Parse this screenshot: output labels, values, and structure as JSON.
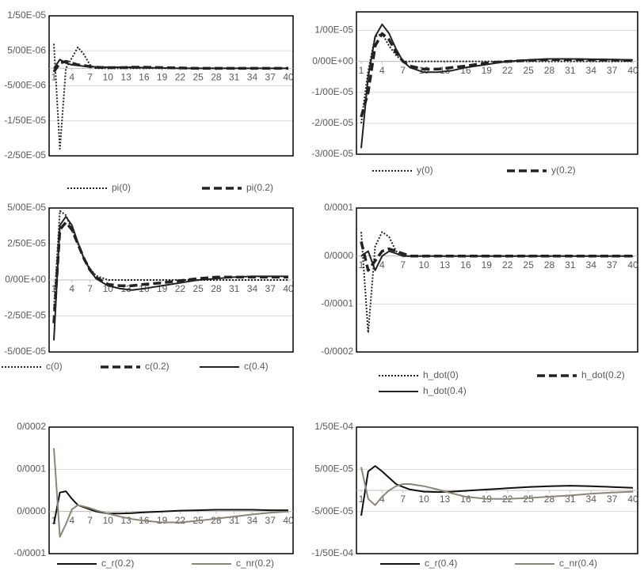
{
  "chart_data": [
    {
      "type": "line",
      "x": [
        1,
        2,
        3,
        4,
        5,
        6,
        7,
        8,
        10,
        12,
        14,
        16,
        19,
        22,
        25,
        28,
        31,
        34,
        37,
        40
      ],
      "xlim": [
        1,
        40
      ],
      "xticks": [
        1,
        4,
        7,
        10,
        13,
        16,
        19,
        22,
        25,
        28,
        31,
        34,
        37,
        40
      ],
      "ylim": [
        -2.5e-05,
        1.5e-05
      ],
      "yticks": [
        {
          "value": 1.5e-05,
          "label": "1/50E-05"
        },
        {
          "value": 5e-06,
          "label": "5/00E-06"
        },
        {
          "value": -5e-06,
          "label": "-5/00E-06"
        },
        {
          "value": -1.5e-05,
          "label": "-1/50E-05"
        },
        {
          "value": -2.5e-05,
          "label": "-2/50E-05"
        }
      ],
      "grid": true,
      "series": [
        {
          "name": "pi(0)",
          "color": "#222222",
          "dash": "dotted",
          "values": [
            7e-06,
            -2.3e-05,
            0,
            3e-06,
            6e-06,
            4e-06,
            1e-06,
            0,
            0,
            0,
            0,
            0,
            0,
            0,
            0,
            0,
            0,
            0,
            0,
            0
          ]
        },
        {
          "name": "pi(0.2)",
          "color": "#222222",
          "dash": "dashed",
          "values": [
            -1e-06,
            1.5e-06,
            2e-06,
            1.5e-06,
            1e-06,
            8e-07,
            5e-07,
            3e-07,
            2e-07,
            2e-07,
            3e-07,
            3e-07,
            2e-07,
            1e-07,
            0,
            0,
            0,
            0,
            0,
            0
          ]
        },
        {
          "color": "#222222",
          "dash": "solid",
          "values": [
            0,
            2.5e-06,
            1.5e-06,
            1e-06,
            8e-07,
            6e-07,
            5e-07,
            4e-07,
            3e-07,
            3e-07,
            3e-07,
            2e-07,
            1e-07,
            0,
            0,
            0,
            0,
            0,
            0,
            0
          ]
        }
      ]
    },
    {
      "type": "line",
      "x": [
        1,
        2,
        3,
        4,
        5,
        6,
        7,
        8,
        10,
        12,
        14,
        16,
        19,
        22,
        25,
        28,
        31,
        34,
        37,
        40
      ],
      "xlim": [
        1,
        40
      ],
      "xticks": [
        1,
        4,
        7,
        10,
        13,
        16,
        19,
        22,
        25,
        28,
        31,
        34,
        37,
        40
      ],
      "ylim": [
        -3e-05,
        1.6e-05
      ],
      "yticks": [
        {
          "value": 1e-05,
          "label": "1/00E-05"
        },
        {
          "value": 0,
          "label": "0/00E+00"
        },
        {
          "value": -1e-05,
          "label": "-1/00E-05"
        },
        {
          "value": -2e-05,
          "label": "-2/00E-05"
        },
        {
          "value": -3e-05,
          "label": "-3/00E-05"
        }
      ],
      "grid": true,
      "series": [
        {
          "name": "y(0)",
          "color": "#222222",
          "dash": "dotted",
          "values": [
            -2e-05,
            -3e-06,
            8e-06,
            9e-06,
            5e-06,
            2e-06,
            0,
            0,
            0,
            0,
            0,
            0,
            0,
            0,
            0,
            0,
            0,
            0,
            0,
            0
          ]
        },
        {
          "name": "y(0.2)",
          "color": "#222222",
          "dash": "dashed",
          "values": [
            -1.8e-05,
            -1e-05,
            5e-06,
            9e-06,
            7e-06,
            3e-06,
            0,
            -1.5e-06,
            -2.5e-06,
            -2.5e-06,
            -2e-06,
            -1.5e-06,
            -5e-07,
            0,
            3e-07,
            6e-07,
            6e-07,
            5e-07,
            4e-07,
            3e-07
          ]
        },
        {
          "color": "#222222",
          "dash": "solid",
          "values": [
            -2.8e-05,
            -5e-06,
            8e-06,
            1.2e-05,
            9e-06,
            4e-06,
            0,
            -2e-06,
            -3.5e-06,
            -3.5e-06,
            -3e-06,
            -2e-06,
            -1e-06,
            0,
            5e-07,
            8e-07,
            8e-07,
            7e-07,
            6e-07,
            5e-07
          ]
        }
      ]
    },
    {
      "type": "line",
      "x": [
        1,
        2,
        3,
        4,
        5,
        6,
        7,
        8,
        10,
        12,
        14,
        16,
        19,
        22,
        25,
        28,
        31,
        34,
        37,
        40
      ],
      "xlim": [
        1,
        40
      ],
      "xticks": [
        1,
        4,
        7,
        10,
        13,
        16,
        19,
        22,
        25,
        28,
        31,
        34,
        37,
        40
      ],
      "ylim": [
        -5e-05,
        5e-05
      ],
      "yticks": [
        {
          "value": 5e-05,
          "label": "5/00E-05"
        },
        {
          "value": 2.5e-05,
          "label": "2/50E-05"
        },
        {
          "value": 0,
          "label": "0/00E+00"
        },
        {
          "value": -2.5e-05,
          "label": "-2/50E-05"
        },
        {
          "value": -5e-05,
          "label": "-5/00E-05"
        }
      ],
      "grid": true,
      "series": [
        {
          "name": "c(0)",
          "color": "#222222",
          "dash": "dotted",
          "values": [
            -2e-05,
            4.8e-05,
            4.5e-05,
            3.5e-05,
            2.5e-05,
            1.5e-05,
            8e-06,
            3e-06,
            0,
            0,
            0,
            0,
            0,
            0,
            0,
            0,
            0,
            0,
            0,
            0
          ]
        },
        {
          "name": "c(0.2)",
          "color": "#222222",
          "dash": "dashed",
          "values": [
            -3e-05,
            3.5e-05,
            4e-05,
            3.5e-05,
            2.5e-05,
            1.5e-05,
            7e-06,
            2e-06,
            -3e-06,
            -4e-06,
            -4e-06,
            -3e-06,
            -2e-06,
            -5e-07,
            1e-06,
            2e-06,
            2e-06,
            2e-06,
            2e-06,
            2e-06
          ]
        },
        {
          "name": "c(0.4)",
          "color": "#222222",
          "dash": "solid",
          "values": [
            -4.2e-05,
            3.8e-05,
            4.4e-05,
            3.8e-05,
            2.6e-05,
            1.5e-05,
            7e-06,
            1e-06,
            -4e-06,
            -6e-06,
            -7e-06,
            -6e-06,
            -4e-06,
            -2e-06,
            0,
            1e-06,
            2e-06,
            2.5e-06,
            2.5e-06,
            2.5e-06
          ]
        }
      ]
    },
    {
      "type": "line",
      "x": [
        1,
        2,
        3,
        4,
        5,
        6,
        7,
        8,
        10,
        12,
        14,
        16,
        19,
        22,
        25,
        28,
        31,
        34,
        37,
        40
      ],
      "xlim": [
        1,
        40
      ],
      "xticks": [
        1,
        4,
        7,
        10,
        13,
        16,
        19,
        22,
        25,
        28,
        31,
        34,
        37,
        40
      ],
      "ylim": [
        -0.0002,
        0.0001
      ],
      "yticks": [
        {
          "value": 0.0001,
          "label": "0/0001"
        },
        {
          "value": 0,
          "label": "0/0000"
        },
        {
          "value": -0.0001,
          "label": "-0/0001"
        },
        {
          "value": -0.0002,
          "label": "-0/0002"
        }
      ],
      "grid": true,
      "series": [
        {
          "name": "h_dot(0)",
          "color": "#222222",
          "dash": "dotted",
          "values": [
            5e-05,
            -0.00016,
            2e-05,
            5e-05,
            4e-05,
            1e-05,
            0,
            0,
            0,
            0,
            0,
            0,
            0,
            0,
            0,
            0,
            0,
            0,
            0,
            0
          ]
        },
        {
          "name": "h_dot(0.2)",
          "color": "#222222",
          "dash": "dashed",
          "values": [
            3e-05,
            -3e-05,
            -1e-05,
            1e-05,
            1.5e-05,
            1e-05,
            5e-06,
            0,
            0,
            0,
            0,
            0,
            0,
            0,
            0,
            0,
            0,
            0,
            0,
            0
          ]
        },
        {
          "name": "h_dot(0.4)",
          "color": "#222222",
          "dash": "solid",
          "values": [
            0,
            1e-05,
            -3e-05,
            0,
            1e-05,
            5e-06,
            0,
            0,
            0,
            0,
            0,
            0,
            0,
            0,
            0,
            0,
            0,
            0,
            0,
            0
          ]
        }
      ]
    },
    {
      "type": "line",
      "x": [
        1,
        2,
        3,
        4,
        5,
        6,
        7,
        8,
        10,
        12,
        14,
        16,
        19,
        22,
        25,
        28,
        31,
        34,
        37,
        40
      ],
      "xlim": [
        1,
        40
      ],
      "xticks": [
        1,
        4,
        7,
        10,
        13,
        16,
        19,
        22,
        25,
        28,
        31,
        34,
        37,
        40
      ],
      "ylim": [
        -0.0001,
        0.0002
      ],
      "yticks": [
        {
          "value": 0.0002,
          "label": "0/0002"
        },
        {
          "value": 0.0001,
          "label": "0/0001"
        },
        {
          "value": 0,
          "label": "0/0000"
        },
        {
          "value": -0.0001,
          "label": "-0/0001"
        }
      ],
      "grid": true,
      "series": [
        {
          "name": "c_r(0.2)",
          "color": "#111111",
          "dash": "solid",
          "values": [
            -3e-05,
            4.5e-05,
            4.8e-05,
            3e-05,
            1.5e-05,
            1e-05,
            5e-06,
            0,
            -5e-06,
            -5e-06,
            -4e-06,
            -2e-06,
            0,
            2e-06,
            3e-06,
            4e-06,
            4e-06,
            4e-06,
            3e-06,
            3e-06
          ]
        },
        {
          "name": "c_nr(0.2)",
          "color": "#8c8578",
          "dash": "solid",
          "values": [
            0.00015,
            -6e-05,
            -3e-05,
            5e-06,
            1.5e-05,
            1.2e-05,
            8e-06,
            3e-06,
            -5e-06,
            -1.2e-05,
            -1.8e-05,
            -2.2e-05,
            -2.6e-05,
            -2.6e-05,
            -2.2e-05,
            -1.7e-05,
            -1.2e-05,
            -7e-06,
            -3e-06,
            0
          ]
        }
      ]
    },
    {
      "type": "line",
      "x": [
        1,
        2,
        3,
        4,
        5,
        6,
        7,
        8,
        10,
        12,
        14,
        16,
        19,
        22,
        25,
        28,
        31,
        34,
        37,
        40
      ],
      "xlim": [
        1,
        40
      ],
      "xticks": [
        1,
        4,
        7,
        10,
        13,
        16,
        19,
        22,
        25,
        28,
        31,
        34,
        37,
        40
      ],
      "ylim": [
        -0.00015,
        0.00015
      ],
      "yticks": [
        {
          "value": 0.00015,
          "label": "1/50E-04"
        },
        {
          "value": 5e-05,
          "label": "5/00E-05"
        },
        {
          "value": -5e-05,
          "label": "-5/00E-05"
        },
        {
          "value": -0.00015,
          "label": "-1/50E-04"
        }
      ],
      "grid": true,
      "series": [
        {
          "name": "c_r(0.4)",
          "color": "#111111",
          "dash": "solid",
          "values": [
            -6e-05,
            4.5e-05,
            5.8e-05,
            4.5e-05,
            3e-05,
            1.5e-05,
            8e-06,
            2e-06,
            -3e-06,
            -4e-06,
            -3e-06,
            -1e-06,
            2e-06,
            5e-06,
            8e-06,
            1e-05,
            1.1e-05,
            1e-05,
            8e-06,
            6e-06
          ]
        },
        {
          "name": "c_nr(0.4)",
          "color": "#8c8578",
          "dash": "solid",
          "values": [
            5.5e-05,
            -2e-05,
            -3.5e-05,
            -1.5e-05,
            0,
            1e-05,
            1.5e-05,
            1.5e-05,
            1e-05,
            2e-06,
            -7e-06,
            -1.5e-05,
            -2e-05,
            -2e-05,
            -1.8e-05,
            -1.5e-05,
            -1.2e-05,
            -8e-06,
            -5e-06,
            -3e-06
          ]
        }
      ]
    }
  ]
}
